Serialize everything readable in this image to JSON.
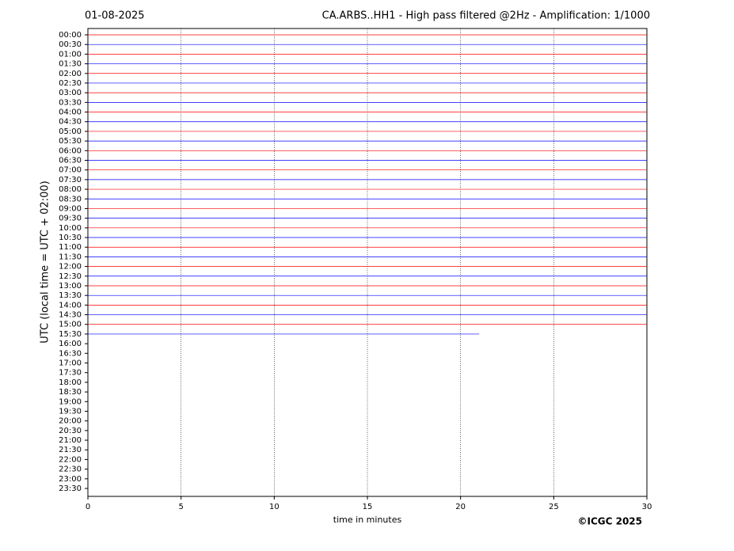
{
  "chart_data": {
    "type": "helicorder",
    "date": "01-08-2025",
    "title": "CA.ARBS..HH1 - High pass filtered @2Hz - Amplification: 1/1000",
    "x_label": "time in minutes",
    "y_label": "UTC (local time = UTC + 02:00)",
    "copyright": "©ICGC 2025",
    "xlim": [
      0,
      30
    ],
    "xticks": [
      0,
      5,
      10,
      15,
      20,
      25,
      30
    ],
    "grid": true,
    "colors": [
      "#ff0000",
      "#0000ff"
    ],
    "categories": [
      "00:00",
      "00:30",
      "01:00",
      "01:30",
      "02:00",
      "02:30",
      "03:00",
      "03:30",
      "04:00",
      "04:30",
      "05:00",
      "05:30",
      "06:00",
      "06:30",
      "07:00",
      "07:30",
      "08:00",
      "08:30",
      "09:00",
      "09:30",
      "10:00",
      "10:30",
      "11:00",
      "11:30",
      "12:00",
      "12:30",
      "13:00",
      "13:30",
      "14:00",
      "14:30",
      "15:00",
      "15:30",
      "16:00",
      "16:30",
      "17:00",
      "17:30",
      "18:00",
      "18:30",
      "19:00",
      "19:30",
      "20:00",
      "20:30",
      "21:00",
      "21:30",
      "22:00",
      "22:30",
      "23:00",
      "23:30"
    ],
    "trace_end": [
      30,
      30,
      30,
      30,
      30,
      30,
      30,
      30,
      30,
      30,
      30,
      30,
      30,
      30,
      30,
      30,
      30,
      30,
      30,
      30,
      30,
      30,
      30,
      30,
      30,
      30,
      30,
      30,
      30,
      30,
      30,
      21,
      null,
      null,
      null,
      null,
      null,
      null,
      null,
      null,
      null,
      null,
      null,
      null,
      null,
      null,
      null,
      null
    ]
  }
}
